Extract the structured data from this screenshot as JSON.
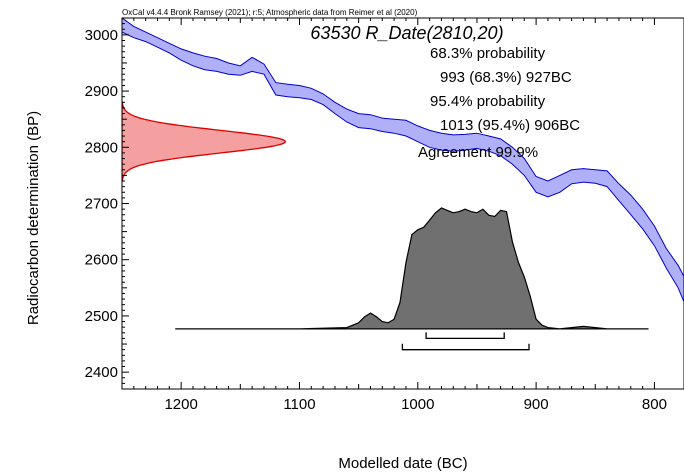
{
  "chart_data": {
    "type": "area",
    "header": "OxCal v4.4.4 Bronk Ramsey (2021); r:5; Atmospheric data from Reimer et al (2020)",
    "sample_title": "63530 R_Date(2810,20)",
    "info_lines": [
      "68.3% probability",
      "993 (68.3%) 927BC",
      "95.4% probability",
      "1013 (95.4%) 906BC",
      "Agreement 99.9%"
    ],
    "xlabel": "Modelled date (BC)",
    "ylabel": "Radiocarbon determination (BP)",
    "xlim": [
      1250,
      775
    ],
    "ylim": [
      2370,
      3030
    ],
    "xticks": [
      1200,
      1100,
      1000,
      900,
      800
    ],
    "yticks": [
      2400,
      2500,
      2600,
      2700,
      2800,
      2900,
      3000
    ],
    "colors": {
      "calibration_fill": "#b0b0f8",
      "calibration_stroke": "#0000cc",
      "radiocarbon_fill": "#f4a0a0",
      "radiocarbon_stroke": "#dd0000",
      "posterior_fill": "#707070"
    },
    "calibration_curve": {
      "name": "IntCal20 band",
      "x": [
        1250,
        1240,
        1230,
        1220,
        1210,
        1200,
        1190,
        1180,
        1170,
        1160,
        1150,
        1140,
        1130,
        1120,
        1110,
        1100,
        1090,
        1080,
        1070,
        1060,
        1050,
        1040,
        1030,
        1020,
        1010,
        1000,
        990,
        980,
        970,
        960,
        950,
        940,
        930,
        920,
        910,
        900,
        890,
        880,
        870,
        860,
        850,
        840,
        830,
        820,
        810,
        800,
        790,
        780,
        775
      ],
      "upper": [
        3030,
        3015,
        3005,
        2995,
        2985,
        2975,
        2968,
        2962,
        2958,
        2950,
        2945,
        2960,
        2948,
        2915,
        2912,
        2910,
        2905,
        2895,
        2880,
        2868,
        2860,
        2858,
        2852,
        2850,
        2848,
        2838,
        2830,
        2825,
        2822,
        2823,
        2825,
        2820,
        2815,
        2800,
        2780,
        2748,
        2740,
        2750,
        2760,
        2762,
        2760,
        2758,
        2735,
        2715,
        2690,
        2660,
        2620,
        2590,
        2570
      ],
      "lower": [
        3005,
        2995,
        2988,
        2978,
        2968,
        2955,
        2945,
        2938,
        2935,
        2930,
        2928,
        2935,
        2930,
        2893,
        2890,
        2888,
        2885,
        2876,
        2860,
        2845,
        2835,
        2833,
        2828,
        2825,
        2820,
        2810,
        2800,
        2795,
        2793,
        2795,
        2798,
        2793,
        2785,
        2770,
        2750,
        2720,
        2712,
        2720,
        2735,
        2738,
        2736,
        2730,
        2705,
        2680,
        2655,
        2625,
        2585,
        2550,
        2525
      ]
    },
    "radiocarbon_distribution": {
      "mean_bp": 2810,
      "sigma_bp": 20,
      "anchor_x": 1250,
      "peak_x": 1112
    },
    "posterior": {
      "baseline_bp": 2477,
      "top_bp": 2692,
      "x": [
        1205,
        1100,
        1060,
        1050,
        1045,
        1040,
        1035,
        1030,
        1025,
        1020,
        1015,
        1010,
        1005,
        1000,
        995,
        990,
        985,
        980,
        975,
        970,
        965,
        960,
        955,
        950,
        945,
        940,
        935,
        930,
        925,
        920,
        915,
        910,
        905,
        900,
        895,
        890,
        880,
        870,
        860,
        850,
        840,
        830,
        805
      ],
      "density": [
        0,
        0,
        0.01,
        0.05,
        0.1,
        0.13,
        0.1,
        0.06,
        0.05,
        0.08,
        0.22,
        0.55,
        0.78,
        0.82,
        0.84,
        0.9,
        0.96,
        1.0,
        0.98,
        0.96,
        0.97,
        0.99,
        0.97,
        0.96,
        0.99,
        0.94,
        0.93,
        0.98,
        0.97,
        0.72,
        0.55,
        0.43,
        0.27,
        0.08,
        0.03,
        0.01,
        0,
        0.01,
        0.02,
        0.01,
        0,
        0,
        0
      ]
    },
    "ranges": [
      {
        "name": "68.3%",
        "from": 993,
        "to": 927,
        "bp": 2460
      },
      {
        "name": "95.4%",
        "from": 1013,
        "to": 906,
        "bp": 2440
      }
    ]
  }
}
